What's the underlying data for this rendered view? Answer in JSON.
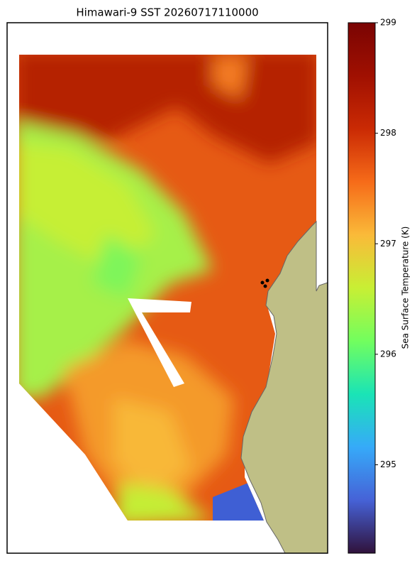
{
  "chart_data": {
    "type": "heatmap",
    "title": "Himawari-9 SST 20260717110000",
    "colorbar_label": "Sea Surface Temperature (K)",
    "clim": [
      294.2,
      299
    ],
    "cticks": [
      295,
      296,
      297,
      298,
      299
    ],
    "colormap": "turbo"
  }
}
